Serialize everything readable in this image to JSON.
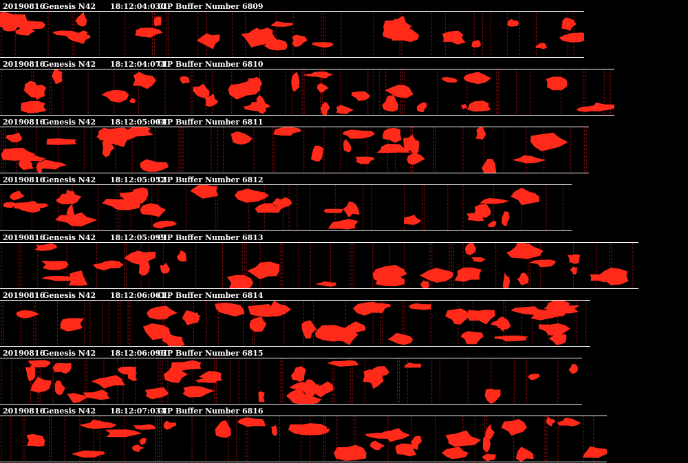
{
  "colors": {
    "background": "#000000",
    "particle": "#ff2a1a",
    "slice_line": "#b01010",
    "text": "#ffffff"
  },
  "strips": [
    {
      "date": "20190816",
      "probe": "Genesis N42",
      "time": "18:12:04:030",
      "label": "CIP Buffer Number 6809"
    },
    {
      "date": "20190816",
      "probe": "Genesis N42",
      "time": "18:12:04:074",
      "label": "CIP Buffer Number 6810"
    },
    {
      "date": "20190816",
      "probe": "Genesis N42",
      "time": "18:12:05:004",
      "label": "CIP Buffer Number 6811"
    },
    {
      "date": "20190816",
      "probe": "Genesis N42",
      "time": "18:12:05:052",
      "label": "CIP Buffer Number 6812"
    },
    {
      "date": "20190816",
      "probe": "Genesis N42",
      "time": "18:12:05:099",
      "label": "CIP Buffer Number 6813"
    },
    {
      "date": "20190816",
      "probe": "Genesis N42",
      "time": "18:12:06:061",
      "label": "CIP Buffer Number 6814"
    },
    {
      "date": "20190816",
      "probe": "Genesis N42",
      "time": "18:12:06:096",
      "label": "CIP Buffer Number 6815"
    },
    {
      "date": "20190816",
      "probe": "Genesis N42",
      "time": "18:12:07:034",
      "label": "CIP Buffer Number 6816"
    }
  ]
}
